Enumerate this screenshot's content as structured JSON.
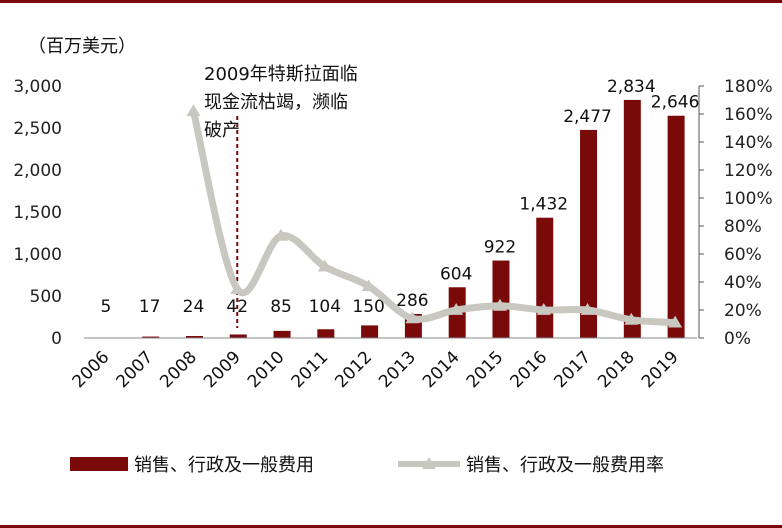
{
  "chart_data": {
    "type": "bar",
    "unit_label": "（百万美元）",
    "categories": [
      "2006",
      "2007",
      "2008",
      "2009",
      "2010",
      "2011",
      "2012",
      "2013",
      "2014",
      "2015",
      "2016",
      "2017",
      "2018",
      "2019"
    ],
    "series": [
      {
        "name": "销售、行政及一般费用",
        "type": "bar",
        "axis": "left",
        "color": "#7a0a0a",
        "values": [
          5,
          17,
          24,
          42,
          85,
          104,
          150,
          286,
          604,
          922,
          1432,
          2477,
          2834,
          2646
        ],
        "labels": [
          "5",
          "17",
          "24",
          "42",
          "85",
          "104",
          "150",
          "286",
          "604",
          "922",
          "1,432",
          "2,477",
          "2,834",
          "2,646"
        ]
      },
      {
        "name": "销售、行政及一般费用率",
        "type": "line",
        "axis": "right",
        "color": "#c8c8c0",
        "values": [
          null,
          null,
          162,
          35,
          73,
          51,
          37,
          14,
          20,
          23,
          20,
          20,
          13,
          11
        ]
      }
    ],
    "ylim_left": [
      0,
      3000
    ],
    "yticks_left": [
      "0",
      "500",
      "1,000",
      "1,500",
      "2,000",
      "2,500",
      "3,000"
    ],
    "ylim_right": [
      0,
      180
    ],
    "yticks_right": [
      "0%",
      "20%",
      "40%",
      "60%",
      "80%",
      "100%",
      "120%",
      "140%",
      "160%",
      "180%"
    ],
    "annotation": {
      "category": "2009",
      "lines": [
        "2009年特斯拉面临",
        "现金流枯竭，濒临",
        "破产"
      ]
    },
    "legend_position": "bottom"
  }
}
